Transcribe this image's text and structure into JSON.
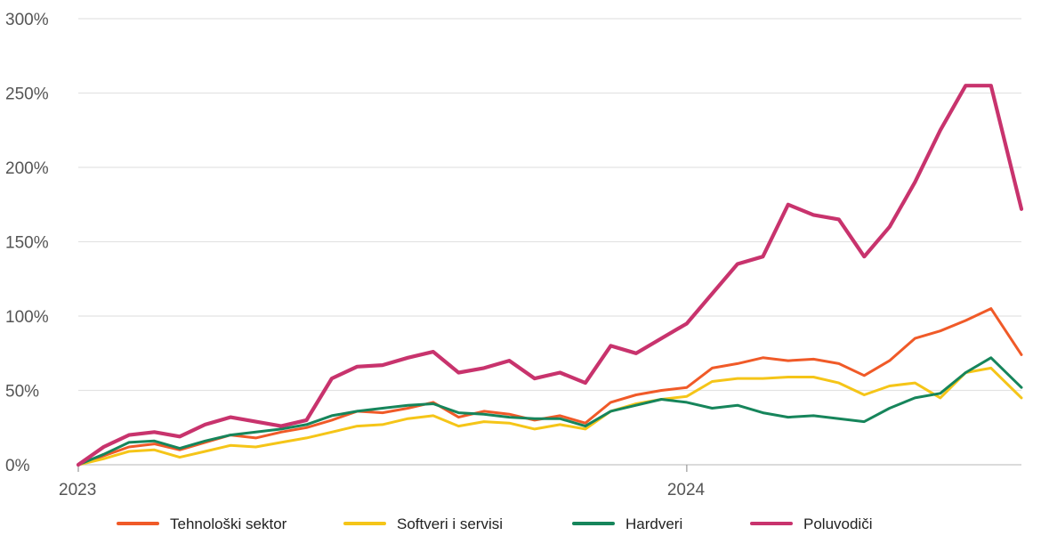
{
  "chart_data": {
    "type": "line",
    "title": "",
    "xlabel": "",
    "ylabel": "",
    "x_ticks": [
      "2023",
      "2024"
    ],
    "y_ticks": [
      "0%",
      "50%",
      "100%",
      "150%",
      "200%",
      "250%",
      "300%"
    ],
    "ylim": [
      0,
      300
    ],
    "x_unit": "months since January 2023",
    "xlim": [
      0,
      18.6
    ],
    "grid": true,
    "legend_position": "bottom",
    "series": [
      {
        "name": "Tehnološki sektor",
        "color": "#f05a28",
        "x": [
          0,
          0.5,
          1,
          1.5,
          2,
          2.5,
          3,
          3.5,
          4,
          4.5,
          5,
          5.5,
          6,
          6.5,
          7,
          7.5,
          8,
          8.5,
          9,
          9.5,
          10,
          10.5,
          11,
          11.5,
          12,
          12.5,
          13,
          13.5,
          14,
          14.5,
          15,
          15.5,
          16,
          16.5,
          17,
          17.5,
          18,
          18.6
        ],
        "y": [
          0,
          6,
          12,
          14,
          10,
          15,
          20,
          18,
          22,
          25,
          30,
          36,
          35,
          38,
          42,
          32,
          36,
          34,
          30,
          33,
          28,
          42,
          47,
          50,
          52,
          65,
          68,
          72,
          70,
          71,
          68,
          60,
          70,
          85,
          90,
          97,
          105,
          74
        ]
      },
      {
        "name": "Softveri i servisi",
        "color": "#f5c518",
        "x": [
          0,
          0.5,
          1,
          1.5,
          2,
          2.5,
          3,
          3.5,
          4,
          4.5,
          5,
          5.5,
          6,
          6.5,
          7,
          7.5,
          8,
          8.5,
          9,
          9.5,
          10,
          10.5,
          11,
          11.5,
          12,
          12.5,
          13,
          13.5,
          14,
          14.5,
          15,
          15.5,
          16,
          16.5,
          17,
          17.5,
          18,
          18.6
        ],
        "y": [
          0,
          4,
          9,
          10,
          5,
          9,
          13,
          12,
          15,
          18,
          22,
          26,
          27,
          31,
          33,
          26,
          29,
          28,
          24,
          27,
          24,
          36,
          41,
          44,
          46,
          56,
          58,
          58,
          59,
          59,
          55,
          47,
          53,
          55,
          45,
          62,
          65,
          45
        ]
      },
      {
        "name": "Hardveri",
        "color": "#16855b",
        "x": [
          0,
          0.5,
          1,
          1.5,
          2,
          2.5,
          3,
          3.5,
          4,
          4.5,
          5,
          5.5,
          6,
          6.5,
          7,
          7.5,
          8,
          8.5,
          9,
          9.5,
          10,
          10.5,
          11,
          11.5,
          12,
          12.5,
          13,
          13.5,
          14,
          14.5,
          15,
          15.5,
          16,
          16.5,
          17,
          17.5,
          18,
          18.6
        ],
        "y": [
          0,
          7,
          15,
          16,
          11,
          16,
          20,
          22,
          24,
          27,
          33,
          36,
          38,
          40,
          41,
          35,
          34,
          32,
          31,
          31,
          26,
          36,
          40,
          44,
          42,
          38,
          40,
          35,
          32,
          33,
          31,
          29,
          38,
          45,
          48,
          62,
          72,
          52
        ]
      },
      {
        "name": "Poluvodiči",
        "color": "#c8336d",
        "x": [
          0,
          0.5,
          1,
          1.5,
          2,
          2.5,
          3,
          3.5,
          4,
          4.5,
          5,
          5.5,
          6,
          6.5,
          7,
          7.5,
          8,
          8.5,
          9,
          9.5,
          10,
          10.5,
          11,
          11.5,
          12,
          12.5,
          13,
          13.5,
          14,
          14.5,
          15,
          15.5,
          16,
          16.5,
          17,
          17.5,
          18,
          18.6
        ],
        "y": [
          0,
          12,
          20,
          22,
          19,
          27,
          32,
          29,
          26,
          30,
          58,
          66,
          67,
          72,
          76,
          62,
          65,
          70,
          58,
          62,
          55,
          80,
          75,
          85,
          95,
          115,
          135,
          140,
          175,
          168,
          165,
          140,
          160,
          190,
          225,
          255,
          255,
          172
        ]
      }
    ]
  }
}
